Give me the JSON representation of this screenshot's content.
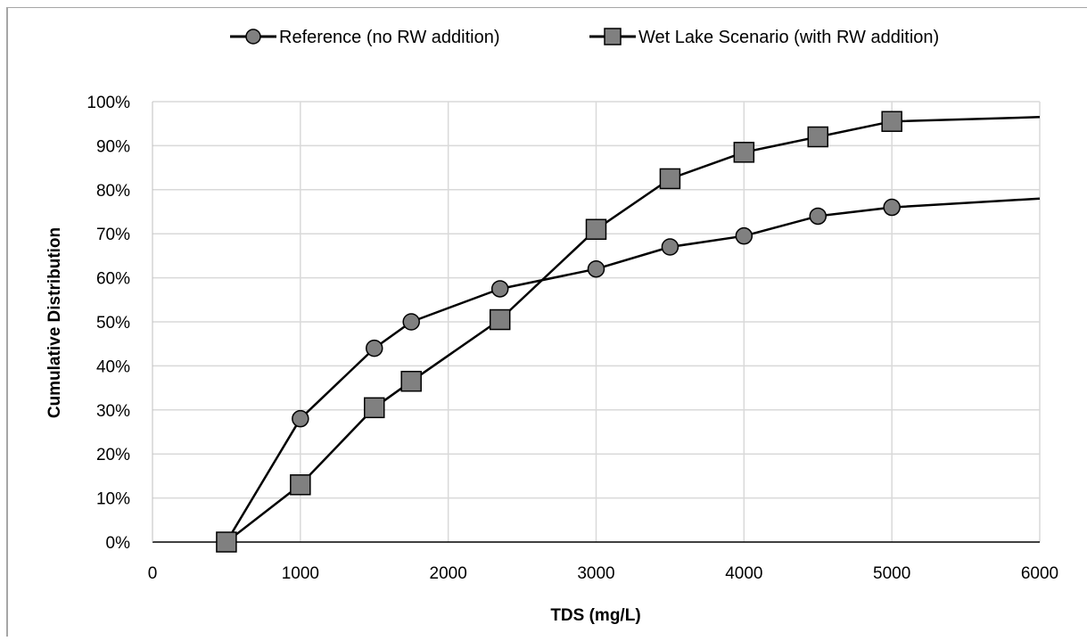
{
  "chart_data": {
    "type": "line",
    "title": "",
    "xlabel": "TDS (mg/L)",
    "ylabel": "Cumulative Distribution",
    "xlim": [
      0,
      6000
    ],
    "ylim": [
      0,
      100
    ],
    "x_ticks": [
      0,
      1000,
      2000,
      3000,
      4000,
      5000,
      6000
    ],
    "x_tick_labels": [
      "0",
      "1000",
      "2000",
      "3000",
      "4000",
      "5000",
      "6000"
    ],
    "y_ticks": [
      0,
      10,
      20,
      30,
      40,
      50,
      60,
      70,
      80,
      90,
      100
    ],
    "y_tick_labels": [
      "0%",
      "10%",
      "20%",
      "30%",
      "40%",
      "50%",
      "60%",
      "70%",
      "80%",
      "90%",
      "100%"
    ],
    "grid": true,
    "legend_position": "top",
    "series": [
      {
        "name": "Reference (no RW addition)",
        "marker": "circle",
        "color": "#808080",
        "line_color": "#000000",
        "points": [
          [
            500,
            0
          ],
          [
            1000,
            28
          ],
          [
            1500,
            44
          ],
          [
            1750,
            50
          ],
          [
            2350,
            57.5
          ],
          [
            3000,
            62
          ],
          [
            3500,
            67
          ],
          [
            4000,
            69.5
          ],
          [
            4500,
            74
          ],
          [
            5000,
            76
          ]
        ],
        "line_extends_to": [
          6000,
          78
        ]
      },
      {
        "name": "Wet Lake Scenario (with RW addition)",
        "marker": "square",
        "color": "#808080",
        "line_color": "#000000",
        "points": [
          [
            500,
            0
          ],
          [
            1000,
            13
          ],
          [
            1500,
            30.5
          ],
          [
            1750,
            36.5
          ],
          [
            2350,
            50.5
          ],
          [
            3000,
            71
          ],
          [
            3500,
            82.5
          ],
          [
            4000,
            88.5
          ],
          [
            4500,
            92
          ],
          [
            5000,
            95.5
          ]
        ],
        "line_extends_to": [
          6000,
          96.5
        ]
      }
    ]
  }
}
